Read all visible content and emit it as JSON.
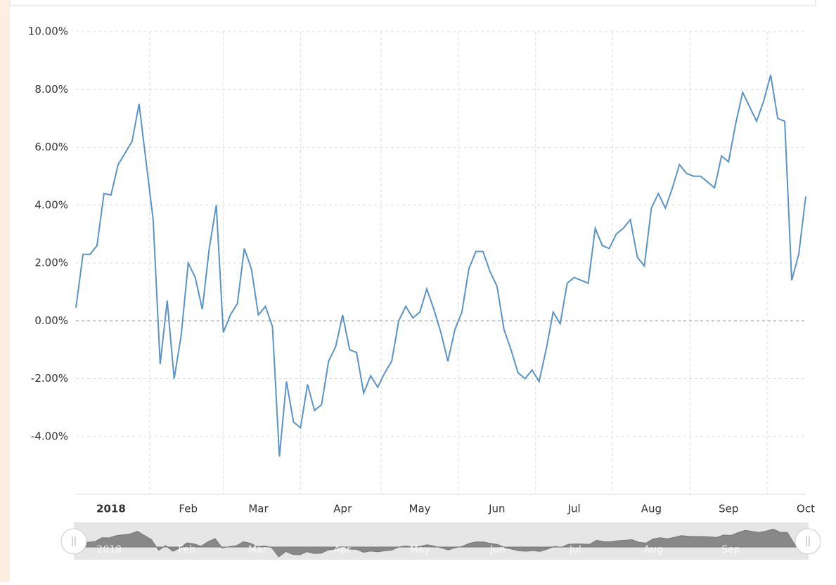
{
  "chart_data": {
    "type": "line",
    "categories": [
      null,
      null,
      null,
      null,
      null,
      "2018",
      null,
      null,
      null,
      null,
      null,
      null,
      null,
      null,
      null,
      null,
      "Feb",
      null,
      null,
      null,
      null,
      null,
      null,
      null,
      null,
      null,
      "Mar",
      null,
      null,
      null,
      null,
      null,
      null,
      null,
      null,
      null,
      null,
      null,
      "Apr",
      null,
      null,
      null,
      null,
      null,
      null,
      null,
      null,
      null,
      null,
      "May",
      null,
      null,
      null,
      null,
      null,
      null,
      null,
      null,
      null,
      null,
      "Jun",
      null,
      null,
      null,
      null,
      null,
      null,
      null,
      null,
      null,
      null,
      "Jul",
      null,
      null,
      null,
      null,
      null,
      null,
      null,
      null,
      null,
      null,
      "Aug",
      null,
      null,
      null,
      null,
      null,
      null,
      null,
      null,
      null,
      null,
      "Sep",
      null,
      null,
      null,
      null,
      null,
      null,
      null,
      null,
      null,
      null,
      "Oct"
    ],
    "series": [
      {
        "color": "#5b93c7",
        "values": [
          0.45,
          2.3,
          2.3,
          2.6,
          4.4,
          4.35,
          5.4,
          5.8,
          6.2,
          7.5,
          5.5,
          3.5,
          -1.5,
          0.7,
          -2.0,
          -0.5,
          2.0,
          1.5,
          0.4,
          2.5,
          4.0,
          -0.4,
          0.2,
          0.6,
          2.5,
          1.8,
          0.2,
          0.5,
          -0.2,
          -4.7,
          -2.1,
          -3.5,
          -3.7,
          -2.2,
          -3.1,
          -2.9,
          -1.4,
          -0.9,
          0.2,
          -1.0,
          -1.1,
          -2.5,
          -1.9,
          -2.3,
          -1.8,
          -1.4,
          0.0,
          0.5,
          0.1,
          0.3,
          1.1,
          0.4,
          -0.4,
          -1.4,
          -0.3,
          0.3,
          1.8,
          2.4,
          2.4,
          1.7,
          1.2,
          -0.3,
          -1.0,
          -1.8,
          -2.0,
          -1.7,
          -2.1,
          -1.0,
          0.3,
          -0.1,
          1.3,
          1.5,
          1.4,
          1.3,
          3.2,
          2.6,
          2.5,
          3.0,
          3.2,
          3.5,
          2.2,
          1.9,
          3.9,
          4.4,
          3.9,
          4.6,
          5.4,
          5.1,
          5.0,
          5.0,
          4.8,
          4.6,
          5.7,
          5.5,
          6.8,
          7.9,
          7.4,
          6.9,
          7.6,
          8.5,
          7.0,
          6.9,
          1.4,
          2.3,
          4.3
        ]
      }
    ],
    "ylim": [
      -6,
      10
    ],
    "yticks": [
      {
        "value": -4,
        "label": "-4.00%"
      },
      {
        "value": -2,
        "label": "-2.00%"
      },
      {
        "value": 0,
        "label": "0.00%"
      },
      {
        "value": 2,
        "label": "2.00%"
      },
      {
        "value": 4,
        "label": "4.00%"
      },
      {
        "value": 6,
        "label": "6.00%"
      },
      {
        "value": 8,
        "label": "8.00%"
      },
      {
        "value": 10,
        "label": "10.00%"
      }
    ],
    "grid": true
  }
}
